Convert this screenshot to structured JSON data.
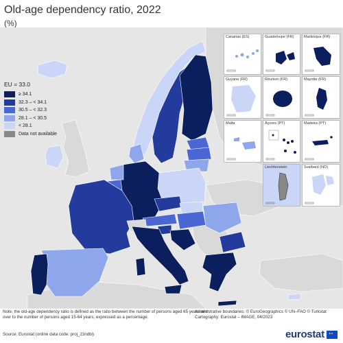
{
  "title": "Old-age dependency ratio, 2022",
  "subtitle": "(%)",
  "colors": {
    "c1": "#0b1f5e",
    "c2": "#233b9d",
    "c3": "#4a67d3",
    "c4": "#8ea7ec",
    "c5": "#c9d6f7",
    "na": "#888888",
    "nonEU": "#d9d9d9",
    "sea": "#e6e6e6"
  },
  "legend": {
    "title": "EU = 33.0",
    "items": [
      {
        "label": "≥ 34.1",
        "color": "#0b1f5e"
      },
      {
        "label": "32.3 – < 34.1",
        "color": "#233b9d"
      },
      {
        "label": "30.5 – < 32.3",
        "color": "#4a67d3"
      },
      {
        "label": "28.1 – < 30.5",
        "color": "#8ea7ec"
      },
      {
        "label": "< 28.1",
        "color": "#c9d6f7"
      },
      {
        "label": "Data not available",
        "color": "#888888"
      }
    ]
  },
  "insets": [
    {
      "label": "Canarias (ES)"
    },
    {
      "label": "Guadeloupe (FR)"
    },
    {
      "label": "Martinique (FR)"
    },
    {
      "label": "Guyane (FR)"
    },
    {
      "label": "Réunion (FR)"
    },
    {
      "label": "Mayotte (FR)"
    },
    {
      "label": "Malta"
    },
    {
      "label": "Açores (PT)"
    },
    {
      "label": "Madeira (PT)"
    },
    {
      "label": "Liechtenstein"
    },
    {
      "label": "Svalbard (NO)"
    }
  ],
  "footer": {
    "note": "Note: the old-age dependency ratio is defined as the ratio between the number of persons aged 65 years and over to the number of persons aged 15-64 years, expressed as a percentage.",
    "source": "Source: Eurostat (online data code: proj_23ndbi)",
    "admin": "Administrative boundaries: © EuroGeographics © UN–FAO © Turkstat",
    "cartography": "Cartography: Eurostat – IMAGE, 04/2023",
    "logo": "eurostat"
  }
}
